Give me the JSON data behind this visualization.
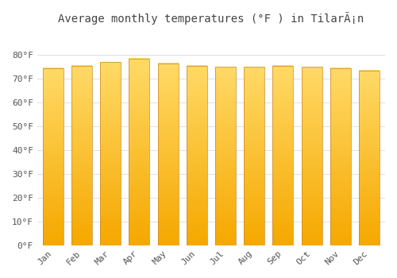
{
  "months": [
    "Jan",
    "Feb",
    "Mar",
    "Apr",
    "May",
    "Jun",
    "Jul",
    "Aug",
    "Sep",
    "Oct",
    "Nov",
    "Dec"
  ],
  "values": [
    74.5,
    75.5,
    77.0,
    78.5,
    76.5,
    75.5,
    75.0,
    75.0,
    75.5,
    75.0,
    74.5,
    73.5
  ],
  "bar_color_bottom": "#F5A800",
  "bar_color_top": "#FFD966",
  "bar_border_color": "#C8872A",
  "background_color": "#FFFFFF",
  "plot_bg_color": "#F5F5F5",
  "title": "Average monthly temperatures (°F ) in TilarÃ¡n",
  "ylim": [
    0,
    90
  ],
  "yticks": [
    0,
    10,
    20,
    30,
    40,
    50,
    60,
    70,
    80
  ],
  "ytick_labels": [
    "0°F",
    "10°F",
    "20°F",
    "30°F",
    "40°F",
    "50°F",
    "60°F",
    "70°F",
    "80°F"
  ],
  "grid_color": "#E0E0E0",
  "title_fontsize": 10,
  "tick_fontsize": 8,
  "bar_width": 0.72,
  "figsize": [
    5.0,
    3.5
  ],
  "dpi": 100
}
